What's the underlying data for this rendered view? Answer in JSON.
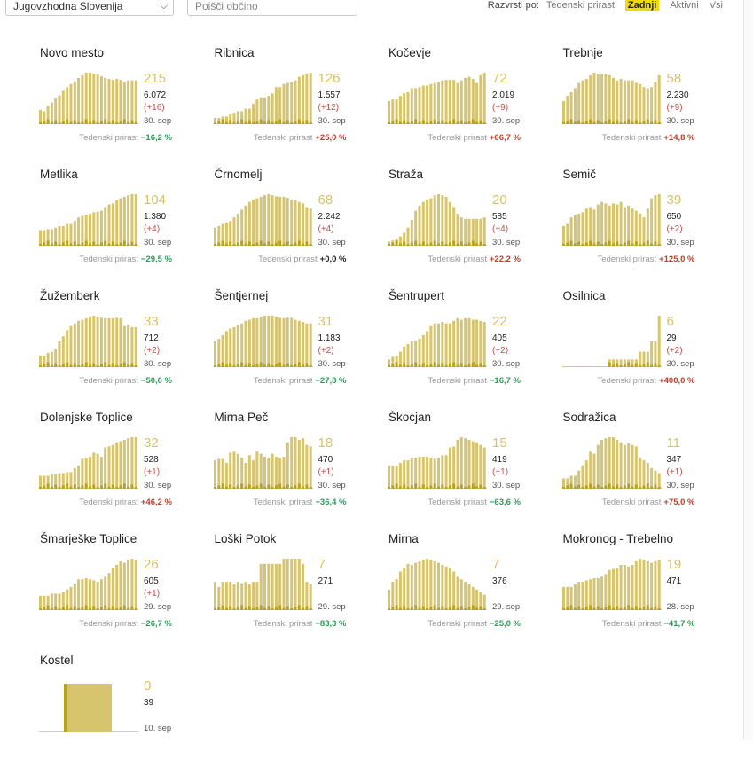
{
  "filter": {
    "region": "Jugovzhodna Slovenija",
    "search_placeholder": "Poišči občino"
  },
  "sort": {
    "label": "Razvrsti po:",
    "options": [
      "Tedenski prirast",
      "Zadnji",
      "Aktivni",
      "Vsi"
    ],
    "active": "Zadnji"
  },
  "growth_label": "Tedenski prirast",
  "colors": {
    "bar": "#d6c56c",
    "bar_new": "#b8a21a",
    "accent": "#f0dc00"
  },
  "municipalities": [
    {
      "name": "Novo mesto",
      "active": "215",
      "total": "6.072",
      "delta": "(+16)",
      "date": "30. sep",
      "growth": "−16,2 %",
      "trend": "neg",
      "series": [
        0.28,
        0.25,
        0.35,
        0.42,
        0.5,
        0.56,
        0.65,
        0.72,
        0.78,
        0.83,
        0.9,
        0.95,
        1.0,
        1.0,
        0.98,
        0.97,
        0.93,
        0.9,
        0.88,
        0.86,
        0.88,
        0.86,
        0.82,
        0.85,
        0.85,
        0.85
      ]
    },
    {
      "name": "Ribnica",
      "active": "126",
      "total": "1.557",
      "delta": "(+12)",
      "date": "30. sep",
      "growth": "+25,0 %",
      "trend": "pos",
      "series": [
        0.12,
        0.12,
        0.15,
        0.15,
        0.2,
        0.22,
        0.25,
        0.25,
        0.3,
        0.3,
        0.4,
        0.48,
        0.52,
        0.52,
        0.55,
        0.6,
        0.72,
        0.72,
        0.78,
        0.8,
        0.82,
        0.85,
        0.92,
        0.95,
        0.98,
        1.0
      ]
    },
    {
      "name": "Kočevje",
      "active": "72",
      "total": "2.019",
      "delta": "(+9)",
      "date": "30. sep",
      "growth": "+66,7 %",
      "trend": "pos",
      "series": [
        0.45,
        0.48,
        0.48,
        0.55,
        0.6,
        0.62,
        0.7,
        0.7,
        0.72,
        0.75,
        0.75,
        0.78,
        0.8,
        0.82,
        0.85,
        0.86,
        0.86,
        0.86,
        0.8,
        0.85,
        0.9,
        0.92,
        0.88,
        0.8,
        0.95,
        1.0
      ]
    },
    {
      "name": "Trebnje",
      "active": "58",
      "total": "2.230",
      "delta": "(+9)",
      "date": "30. sep",
      "growth": "+14,8 %",
      "trend": "pos",
      "series": [
        0.45,
        0.55,
        0.62,
        0.7,
        0.8,
        0.85,
        0.88,
        0.95,
        1.0,
        0.98,
        0.98,
        0.98,
        0.95,
        0.9,
        0.85,
        0.88,
        0.85,
        0.85,
        0.85,
        0.8,
        0.78,
        0.72,
        0.7,
        0.72,
        0.82,
        0.95
      ]
    },
    {
      "name": "Metlika",
      "active": "104",
      "total": "1.380",
      "delta": "(+4)",
      "date": "30. sep",
      "growth": "−29,5 %",
      "trend": "neg",
      "series": [
        0.3,
        0.3,
        0.32,
        0.32,
        0.35,
        0.38,
        0.38,
        0.42,
        0.42,
        0.48,
        0.55,
        0.58,
        0.6,
        0.62,
        0.65,
        0.66,
        0.68,
        0.75,
        0.8,
        0.82,
        0.88,
        0.92,
        0.95,
        0.98,
        1.0,
        1.0
      ]
    },
    {
      "name": "Črnomelj",
      "active": "68",
      "total": "2.242",
      "delta": "(+4)",
      "date": "30. sep",
      "growth": "+0,0 %",
      "trend": "zero",
      "series": [
        0.35,
        0.38,
        0.42,
        0.45,
        0.48,
        0.55,
        0.62,
        0.7,
        0.78,
        0.85,
        0.9,
        0.92,
        0.95,
        0.98,
        1.0,
        0.98,
        0.96,
        0.95,
        0.95,
        0.93,
        0.9,
        0.88,
        0.85,
        0.82,
        0.75,
        0.72
      ]
    },
    {
      "name": "Straža",
      "active": "20",
      "total": "585",
      "delta": "(+4)",
      "date": "30. sep",
      "growth": "+22,2 %",
      "trend": "pos",
      "series": [
        0.08,
        0.1,
        0.12,
        0.18,
        0.25,
        0.35,
        0.5,
        0.68,
        0.78,
        0.85,
        0.9,
        0.92,
        0.98,
        1.0,
        0.98,
        0.95,
        0.85,
        0.75,
        0.62,
        0.55,
        0.52,
        0.52,
        0.52,
        0.52,
        0.52,
        0.55
      ]
    },
    {
      "name": "Semič",
      "active": "39",
      "total": "650",
      "delta": "(+2)",
      "date": "30. sep",
      "growth": "+125,0 %",
      "trend": "pos",
      "series": [
        0.38,
        0.42,
        0.55,
        0.6,
        0.62,
        0.65,
        0.72,
        0.75,
        0.7,
        0.8,
        0.85,
        0.82,
        0.78,
        0.82,
        0.8,
        0.85,
        0.75,
        0.78,
        0.72,
        0.68,
        0.62,
        0.55,
        0.72,
        0.92,
        0.98,
        1.0
      ]
    },
    {
      "name": "Žužemberk",
      "active": "33",
      "total": "712",
      "delta": "(+2)",
      "date": "30. sep",
      "growth": "−50,0 %",
      "trend": "neg",
      "series": [
        0.22,
        0.22,
        0.28,
        0.3,
        0.35,
        0.5,
        0.6,
        0.72,
        0.8,
        0.85,
        0.9,
        0.92,
        0.95,
        0.98,
        1.0,
        0.98,
        0.96,
        0.95,
        0.95,
        0.95,
        0.96,
        0.95,
        0.8,
        0.82,
        0.78,
        0.78
      ]
    },
    {
      "name": "Šentjernej",
      "active": "31",
      "total": "1.183",
      "delta": "(+2)",
      "date": "30. sep",
      "growth": "−27,8 %",
      "trend": "neg",
      "series": [
        0.5,
        0.55,
        0.62,
        0.7,
        0.75,
        0.78,
        0.82,
        0.85,
        0.9,
        0.92,
        0.95,
        0.95,
        0.98,
        1.0,
        1.0,
        1.0,
        0.98,
        0.96,
        0.95,
        0.96,
        0.96,
        0.92,
        0.9,
        0.88,
        0.85,
        0.85
      ]
    },
    {
      "name": "Šentrupert",
      "active": "22",
      "total": "405",
      "delta": "(+2)",
      "date": "30. sep",
      "growth": "−16,7 %",
      "trend": "neg",
      "series": [
        0.15,
        0.2,
        0.22,
        0.3,
        0.4,
        0.45,
        0.5,
        0.52,
        0.55,
        0.62,
        0.7,
        0.8,
        0.85,
        0.85,
        0.88,
        0.85,
        0.85,
        0.9,
        0.95,
        0.92,
        0.95,
        0.95,
        0.92,
        0.92,
        0.9,
        0.88
      ]
    },
    {
      "name": "Osilnica",
      "active": "6",
      "total": "29",
      "delta": "(+2)",
      "date": "30. sep",
      "growth": "+400,0 %",
      "trend": "pos",
      "series": [
        0.01,
        0.01,
        0.01,
        0.01,
        0.01,
        0.01,
        0.01,
        0.01,
        0.01,
        0.01,
        0.01,
        0.01,
        0.15,
        0.15,
        0.15,
        0.15,
        0.15,
        0.15,
        0.15,
        0.15,
        0.3,
        0.3,
        0.3,
        0.5,
        0.5,
        1.0
      ]
    },
    {
      "name": "Dolenjske Toplice",
      "active": "32",
      "total": "528",
      "delta": "(+1)",
      "date": "30. sep",
      "growth": "+46,2 %",
      "trend": "pos",
      "series": [
        0.25,
        0.25,
        0.25,
        0.28,
        0.28,
        0.3,
        0.3,
        0.32,
        0.32,
        0.4,
        0.45,
        0.58,
        0.6,
        0.62,
        0.7,
        0.68,
        0.62,
        0.8,
        0.82,
        0.85,
        0.9,
        0.92,
        0.95,
        0.98,
        1.0,
        1.0
      ]
    },
    {
      "name": "Mirna Peč",
      "active": "18",
      "total": "470",
      "delta": "(+1)",
      "date": "30. sep",
      "growth": "−36,4 %",
      "trend": "neg",
      "series": [
        0.55,
        0.58,
        0.58,
        0.5,
        0.7,
        0.72,
        0.68,
        0.6,
        0.5,
        0.65,
        0.55,
        0.72,
        0.68,
        0.62,
        0.6,
        0.68,
        0.62,
        0.6,
        0.62,
        0.9,
        1.0,
        1.0,
        0.95,
        0.98,
        0.85,
        0.82
      ]
    },
    {
      "name": "Škocjan",
      "active": "15",
      "total": "419",
      "delta": "(+1)",
      "date": "30. sep",
      "growth": "−63,6 %",
      "trend": "neg",
      "series": [
        0.45,
        0.45,
        0.45,
        0.5,
        0.55,
        0.55,
        0.6,
        0.6,
        0.62,
        0.62,
        0.62,
        0.6,
        0.58,
        0.6,
        0.65,
        0.65,
        0.8,
        0.82,
        0.95,
        1.0,
        0.98,
        0.95,
        0.92,
        0.9,
        0.85,
        0.8
      ]
    },
    {
      "name": "Sodražica",
      "active": "11",
      "total": "347",
      "delta": "(+1)",
      "date": "30. sep",
      "growth": "+75,0 %",
      "trend": "pos",
      "series": [
        0.2,
        0.2,
        0.25,
        0.25,
        0.35,
        0.45,
        0.55,
        0.72,
        0.68,
        0.85,
        0.95,
        0.98,
        1.0,
        1.0,
        0.95,
        0.9,
        0.85,
        0.88,
        0.85,
        0.82,
        0.6,
        0.55,
        0.5,
        0.4,
        0.35,
        0.3
      ]
    },
    {
      "name": "Šmarješke Toplice",
      "active": "26",
      "total": "605",
      "delta": "(+1)",
      "date": "29. sep",
      "growth": "−26,7 %",
      "trend": "neg",
      "series": [
        0.28,
        0.28,
        0.28,
        0.32,
        0.32,
        0.32,
        0.35,
        0.4,
        0.45,
        0.52,
        0.6,
        0.6,
        0.62,
        0.6,
        0.58,
        0.55,
        0.6,
        0.65,
        0.72,
        0.82,
        0.88,
        0.95,
        0.92,
        0.98,
        1.0,
        0.98
      ]
    },
    {
      "name": "Loški Potok",
      "active": "7",
      "total": "271",
      "delta": "",
      "date": "29. sep",
      "growth": "−83,3 %",
      "trend": "neg",
      "series": [
        0.55,
        0.45,
        0.55,
        0.55,
        0.55,
        0.5,
        0.55,
        0.52,
        0.55,
        0.5,
        0.55,
        0.55,
        0.9,
        0.9,
        0.9,
        0.9,
        0.9,
        0.9,
        1.0,
        1.0,
        1.0,
        1.0,
        1.0,
        0.9,
        0.55,
        0.5
      ]
    },
    {
      "name": "Mirna",
      "active": "7",
      "total": "376",
      "delta": "",
      "date": "29. sep",
      "growth": "−25,0 %",
      "trend": "neg",
      "series": [
        0.4,
        0.55,
        0.6,
        0.75,
        0.82,
        0.9,
        0.88,
        0.92,
        0.95,
        0.98,
        1.0,
        0.98,
        0.95,
        0.92,
        0.88,
        0.85,
        0.82,
        0.75,
        0.65,
        0.6,
        0.55,
        0.5,
        0.45,
        0.4,
        0.35,
        0.3
      ]
    },
    {
      "name": "Mokronog - Trebelno",
      "active": "19",
      "total": "471",
      "delta": "",
      "date": "28. sep",
      "growth": "−41,7 %",
      "trend": "neg",
      "series": [
        0.45,
        0.45,
        0.45,
        0.5,
        0.55,
        0.55,
        0.58,
        0.6,
        0.62,
        0.62,
        0.65,
        0.7,
        0.78,
        0.8,
        0.82,
        0.88,
        0.88,
        0.85,
        0.88,
        0.95,
        1.0,
        0.98,
        0.95,
        0.92,
        0.95,
        0.98
      ]
    },
    {
      "name": "Kostel",
      "active": "0",
      "total": "39",
      "delta": "",
      "date": "10. sep",
      "growth": "",
      "trend": "",
      "series": [
        1.0
      ]
    }
  ]
}
